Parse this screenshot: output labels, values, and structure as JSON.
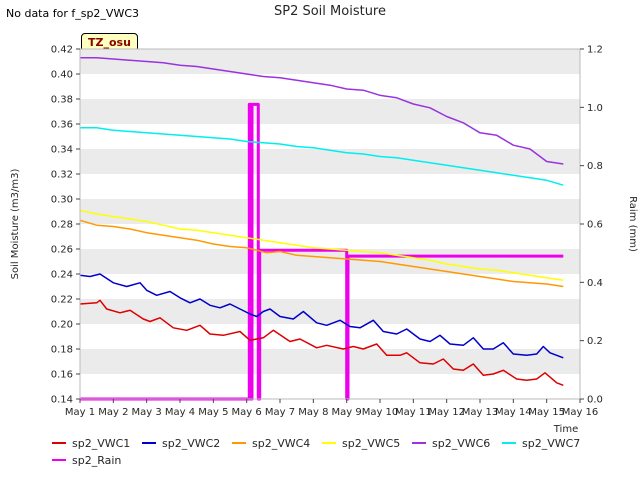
{
  "chart_data": {
    "type": "line",
    "title": "SP2 Soil Moisture",
    "no_data_note": "No data for f_sp2_VWC3",
    "station_badge": "TZ_osu",
    "xlabel": "Time",
    "ylabel": "Soil Moisture (m3/m3)",
    "y2label": "Raim (mm)",
    "x_tick_labels": [
      "May 1",
      "May 2",
      "May 3",
      "May 4",
      "May 5",
      "May 6",
      "May 7",
      "May 8",
      "May 9",
      "May 10",
      "May 11",
      "May 12",
      "May 13",
      "May 14",
      "May 15",
      "May 16"
    ],
    "ylim": [
      0.14,
      0.42
    ],
    "y_ticks": [
      "0.14",
      "0.16",
      "0.18",
      "0.20",
      "0.22",
      "0.24",
      "0.26",
      "0.28",
      "0.30",
      "0.32",
      "0.34",
      "0.36",
      "0.38",
      "0.40",
      "0.42"
    ],
    "y2lim": [
      0.0,
      1.2
    ],
    "y2_ticks": [
      "0.0",
      "0.2",
      "0.4",
      "0.6",
      "0.8",
      "1.0",
      "1.2"
    ],
    "x_day_range": [
      1,
      16
    ],
    "grid": "horizontal bands",
    "legend_position": "bottom",
    "series": [
      {
        "name": "sp2_VWC1",
        "color": "#dd0000",
        "axis": "left",
        "x": [
          1.0,
          1.5,
          1.6,
          1.8,
          2.2,
          2.5,
          2.9,
          3.1,
          3.4,
          3.8,
          4.2,
          4.6,
          4.9,
          5.3,
          5.8,
          6.1,
          6.3,
          6.5,
          6.8,
          7.3,
          7.6,
          8.1,
          8.4,
          8.9,
          9.2,
          9.5,
          9.9,
          10.2,
          10.6,
          10.8,
          11.2,
          11.6,
          11.9,
          12.2,
          12.5,
          12.8,
          13.1,
          13.4,
          13.7,
          14.1,
          14.4,
          14.7,
          14.95,
          15.3,
          15.5
        ],
        "y": [
          0.216,
          0.217,
          0.219,
          0.212,
          0.209,
          0.211,
          0.204,
          0.202,
          0.205,
          0.197,
          0.195,
          0.199,
          0.192,
          0.191,
          0.194,
          0.187,
          0.188,
          0.189,
          0.195,
          0.186,
          0.188,
          0.181,
          0.183,
          0.18,
          0.182,
          0.18,
          0.184,
          0.175,
          0.175,
          0.177,
          0.169,
          0.168,
          0.172,
          0.164,
          0.163,
          0.168,
          0.159,
          0.16,
          0.163,
          0.156,
          0.155,
          0.156,
          0.161,
          0.153,
          0.151
        ]
      },
      {
        "name": "sp2_VWC2",
        "color": "#0000cc",
        "axis": "left",
        "x": [
          1.0,
          1.3,
          1.6,
          2.0,
          2.4,
          2.8,
          3.0,
          3.3,
          3.7,
          4.0,
          4.3,
          4.6,
          4.9,
          5.2,
          5.5,
          5.8,
          6.1,
          6.3,
          6.5,
          6.7,
          7.0,
          7.4,
          7.7,
          8.1,
          8.4,
          8.8,
          9.1,
          9.4,
          9.8,
          10.1,
          10.5,
          10.8,
          11.2,
          11.5,
          11.8,
          12.1,
          12.5,
          12.8,
          13.1,
          13.4,
          13.7,
          14.0,
          14.4,
          14.7,
          14.9,
          15.1,
          15.5
        ],
        "y": [
          0.239,
          0.238,
          0.24,
          0.233,
          0.23,
          0.233,
          0.227,
          0.223,
          0.226,
          0.221,
          0.217,
          0.22,
          0.215,
          0.213,
          0.216,
          0.212,
          0.208,
          0.206,
          0.21,
          0.212,
          0.206,
          0.204,
          0.21,
          0.201,
          0.199,
          0.203,
          0.198,
          0.197,
          0.203,
          0.194,
          0.192,
          0.196,
          0.188,
          0.186,
          0.191,
          0.184,
          0.183,
          0.189,
          0.18,
          0.18,
          0.185,
          0.176,
          0.175,
          0.176,
          0.182,
          0.177,
          0.173
        ]
      },
      {
        "name": "sp2_VWC4",
        "color": "#ff9900",
        "axis": "left",
        "x": [
          1.0,
          1.5,
          2.0,
          2.5,
          3.0,
          3.5,
          4.0,
          4.5,
          5.0,
          5.5,
          6.0,
          6.3,
          6.6,
          7.0,
          7.5,
          8.0,
          8.5,
          9.0,
          9.5,
          10.0,
          10.5,
          11.0,
          11.5,
          12.0,
          12.5,
          13.0,
          13.5,
          14.0,
          14.5,
          15.0,
          15.5
        ],
        "y": [
          0.283,
          0.279,
          0.278,
          0.276,
          0.273,
          0.271,
          0.269,
          0.267,
          0.264,
          0.262,
          0.261,
          0.259,
          0.257,
          0.258,
          0.255,
          0.254,
          0.253,
          0.252,
          0.251,
          0.25,
          0.248,
          0.246,
          0.244,
          0.242,
          0.24,
          0.238,
          0.236,
          0.234,
          0.233,
          0.232,
          0.23
        ]
      },
      {
        "name": "sp2_VWC5",
        "color": "#ffff00",
        "axis": "left",
        "x": [
          1.0,
          1.5,
          2.0,
          2.5,
          3.0,
          3.5,
          4.0,
          4.5,
          5.0,
          5.5,
          6.0,
          6.5,
          7.0,
          7.5,
          8.0,
          8.5,
          9.0,
          9.5,
          10.0,
          10.5,
          11.0,
          11.5,
          12.0,
          12.5,
          13.0,
          13.5,
          14.0,
          14.5,
          15.0,
          15.5
        ],
        "y": [
          0.291,
          0.288,
          0.286,
          0.284,
          0.282,
          0.279,
          0.276,
          0.275,
          0.273,
          0.271,
          0.269,
          0.267,
          0.265,
          0.263,
          0.261,
          0.26,
          0.259,
          0.258,
          0.257,
          0.255,
          0.253,
          0.251,
          0.248,
          0.246,
          0.244,
          0.243,
          0.241,
          0.239,
          0.237,
          0.235
        ]
      },
      {
        "name": "sp2_VWC6",
        "color": "#9933dd",
        "axis": "left",
        "x": [
          1.0,
          1.5,
          2.0,
          2.5,
          3.0,
          3.5,
          4.0,
          4.5,
          5.0,
          5.5,
          6.0,
          6.5,
          7.0,
          7.5,
          8.0,
          8.5,
          9.0,
          9.5,
          10.0,
          10.5,
          11.0,
          11.5,
          12.0,
          12.5,
          13.0,
          13.5,
          14.0,
          14.5,
          15.0,
          15.5
        ],
        "y": [
          0.413,
          0.413,
          0.412,
          0.411,
          0.41,
          0.409,
          0.407,
          0.406,
          0.404,
          0.402,
          0.4,
          0.398,
          0.397,
          0.395,
          0.393,
          0.391,
          0.388,
          0.387,
          0.383,
          0.381,
          0.376,
          0.373,
          0.366,
          0.361,
          0.353,
          0.351,
          0.343,
          0.34,
          0.33,
          0.328
        ]
      },
      {
        "name": "sp2_VWC7",
        "color": "#00eeee",
        "axis": "left",
        "x": [
          1.0,
          1.5,
          2.0,
          2.5,
          3.0,
          3.5,
          4.0,
          4.5,
          5.0,
          5.5,
          6.0,
          6.5,
          7.0,
          7.5,
          8.0,
          8.5,
          9.0,
          9.5,
          10.0,
          10.5,
          11.0,
          11.5,
          12.0,
          12.5,
          13.0,
          13.5,
          14.0,
          14.5,
          15.0,
          15.5
        ],
        "y": [
          0.357,
          0.357,
          0.355,
          0.354,
          0.353,
          0.352,
          0.351,
          0.35,
          0.349,
          0.348,
          0.346,
          0.345,
          0.344,
          0.342,
          0.341,
          0.339,
          0.337,
          0.336,
          0.334,
          0.333,
          0.331,
          0.329,
          0.327,
          0.325,
          0.323,
          0.321,
          0.319,
          0.317,
          0.315,
          0.311
        ]
      },
      {
        "name": "sp2_Rain",
        "color": "#ee00ee",
        "axis": "right",
        "x": [
          1.0,
          6.08,
          6.08,
          6.12,
          6.12,
          6.16,
          6.16,
          6.35,
          6.35,
          6.39,
          6.39,
          9.0,
          9.0,
          9.04,
          9.04,
          15.5
        ],
        "y": [
          0.0,
          0.0,
          1.01,
          1.01,
          0.0,
          0.0,
          1.01,
          1.01,
          0.0,
          0.0,
          0.51,
          0.51,
          0.0,
          0.0,
          0.49,
          0.49
        ]
      }
    ]
  }
}
